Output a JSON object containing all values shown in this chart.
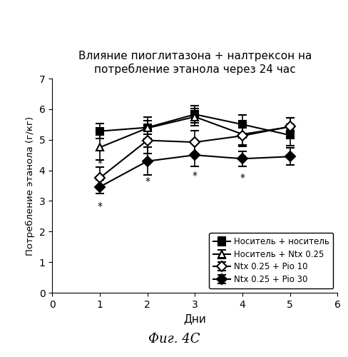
{
  "title": "Влияние пиоглитазона + налтрексон на\nпотребление этанола через 24 час",
  "xlabel": "Дни",
  "ylabel": "Потребление этанола (г/кг)",
  "caption": "Фиг. 4C",
  "xlim": [
    0,
    6
  ],
  "ylim": [
    0,
    7
  ],
  "xticks": [
    0,
    1,
    2,
    3,
    4,
    5,
    6
  ],
  "yticks": [
    0,
    1,
    2,
    3,
    4,
    5,
    6,
    7
  ],
  "days": [
    1,
    2,
    3,
    4,
    5
  ],
  "series": [
    {
      "label": "Носитель + носитель",
      "y": [
        5.28,
        5.4,
        5.83,
        5.5,
        5.15
      ],
      "yerr": [
        0.25,
        0.22,
        0.28,
        0.3,
        0.35
      ],
      "color": "#000000",
      "marker": "s",
      "mfc": "#000000",
      "linestyle": "-"
    },
    {
      "label": "Носитель + Ntx 0.25",
      "y": [
        4.75,
        5.38,
        5.75,
        5.18,
        5.42
      ],
      "yerr": [
        0.4,
        0.35,
        0.28,
        0.35,
        0.3
      ],
      "color": "#000000",
      "marker": "^",
      "mfc": "white",
      "linestyle": "-"
    },
    {
      "label": "Ntx 0.25 + Pio 10",
      "y": [
        3.75,
        4.98,
        4.92,
        5.13,
        5.43
      ],
      "yerr": [
        0.35,
        0.42,
        0.38,
        0.35,
        0.28
      ],
      "color": "#000000",
      "marker": "D",
      "mfc": "white",
      "linestyle": "-"
    },
    {
      "label": "Ntx 0.25 + Pio 30",
      "y": [
        3.46,
        4.3,
        4.5,
        4.38,
        4.45
      ],
      "yerr": [
        0.22,
        0.45,
        0.38,
        0.25,
        0.28
      ],
      "color": "#000000",
      "marker": "D",
      "mfc": "#000000",
      "linestyle": "-"
    }
  ],
  "star_positions": [
    [
      1,
      2.82
    ],
    [
      1,
      4.22
    ],
    [
      2,
      3.65
    ],
    [
      3,
      3.82
    ],
    [
      4,
      3.75
    ]
  ]
}
